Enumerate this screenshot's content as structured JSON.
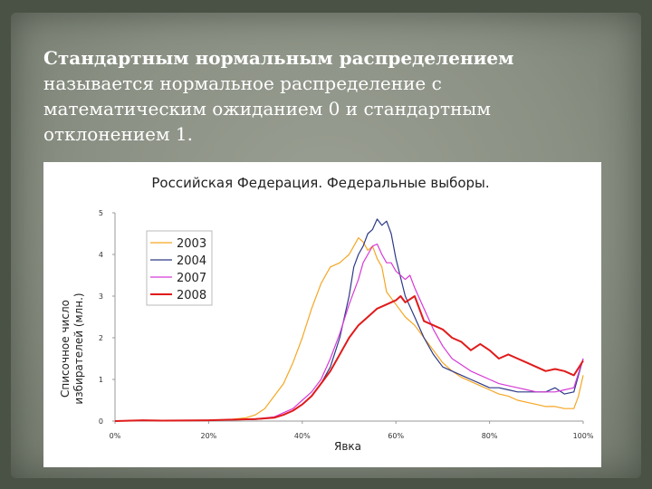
{
  "slide": {
    "definition_lead": "Стандартным нормальным распределением",
    "definition_rest": "называется нормальное распределение с математическим ожиданием 0 и стандартным отклонением 1."
  },
  "chart_data": {
    "type": "line",
    "title": "Российская Федерация. Федеральные выборы.",
    "xlabel": "Явка",
    "ylabel": "Списочное число избирателей (млн.)",
    "xlim": [
      0,
      100
    ],
    "ylim": [
      0,
      5
    ],
    "xticks": [
      "0%",
      "20%",
      "40%",
      "60%",
      "80%",
      "100%"
    ],
    "yticks": [
      "0",
      "1",
      "2",
      "3",
      "4",
      "5"
    ],
    "legend_position": "top-left",
    "series": [
      {
        "name": "2003",
        "color": "#f5a623",
        "x": [
          0,
          6,
          8,
          10,
          14,
          20,
          24,
          28,
          30,
          32,
          34,
          36,
          38,
          40,
          42,
          44,
          45,
          46,
          48,
          50,
          51,
          52,
          53,
          54,
          55,
          56,
          57,
          58,
          60,
          62,
          64,
          66,
          68,
          70,
          72,
          74,
          76,
          78,
          80,
          82,
          84,
          86,
          88,
          90,
          92,
          94,
          96,
          98,
          99,
          100
        ],
        "y": [
          0,
          0.02,
          0.01,
          0.01,
          0.02,
          0.02,
          0.03,
          0.08,
          0.15,
          0.3,
          0.6,
          0.9,
          1.4,
          2.0,
          2.7,
          3.3,
          3.5,
          3.7,
          3.8,
          4.0,
          4.2,
          4.4,
          4.3,
          4.1,
          4.2,
          3.9,
          3.7,
          3.1,
          2.8,
          2.5,
          2.3,
          2.0,
          1.7,
          1.4,
          1.2,
          1.05,
          0.95,
          0.85,
          0.75,
          0.65,
          0.6,
          0.5,
          0.45,
          0.4,
          0.35,
          0.35,
          0.3,
          0.3,
          0.6,
          1.1
        ]
      },
      {
        "name": "2004",
        "color": "#2e3a87",
        "x": [
          0,
          6,
          10,
          20,
          30,
          34,
          36,
          38,
          40,
          42,
          44,
          46,
          48,
          50,
          51,
          52,
          53,
          54,
          55,
          56,
          57,
          58,
          59,
          60,
          62,
          64,
          66,
          68,
          70,
          72,
          74,
          76,
          78,
          80,
          82,
          84,
          86,
          88,
          90,
          92,
          94,
          96,
          98,
          100
        ],
        "y": [
          0,
          0.02,
          0.01,
          0.02,
          0.04,
          0.08,
          0.15,
          0.25,
          0.4,
          0.6,
          0.9,
          1.3,
          2.0,
          3.0,
          3.7,
          4.0,
          4.2,
          4.5,
          4.6,
          4.85,
          4.7,
          4.8,
          4.5,
          3.9,
          3.0,
          2.5,
          2.0,
          1.6,
          1.3,
          1.2,
          1.1,
          1.0,
          0.9,
          0.8,
          0.8,
          0.75,
          0.7,
          0.7,
          0.7,
          0.7,
          0.8,
          0.65,
          0.7,
          1.5
        ]
      },
      {
        "name": "2007",
        "color": "#d63ad6",
        "x": [
          0,
          6,
          10,
          20,
          30,
          34,
          36,
          38,
          40,
          42,
          44,
          46,
          48,
          50,
          52,
          53,
          54,
          55,
          56,
          57,
          58,
          59,
          60,
          62,
          63,
          64,
          66,
          68,
          70,
          72,
          74,
          76,
          78,
          80,
          82,
          84,
          86,
          88,
          90,
          92,
          94,
          96,
          98,
          100
        ],
        "y": [
          0,
          0.02,
          0.01,
          0.02,
          0.05,
          0.1,
          0.2,
          0.3,
          0.5,
          0.7,
          1.0,
          1.5,
          2.1,
          2.8,
          3.4,
          3.8,
          4.0,
          4.2,
          4.25,
          4.0,
          3.8,
          3.8,
          3.6,
          3.4,
          3.5,
          3.2,
          2.7,
          2.2,
          1.8,
          1.5,
          1.35,
          1.2,
          1.1,
          1.0,
          0.9,
          0.85,
          0.8,
          0.75,
          0.7,
          0.7,
          0.7,
          0.75,
          0.8,
          1.5
        ]
      },
      {
        "name": "2008",
        "color": "#e01b1b",
        "x": [
          0,
          6,
          10,
          20,
          30,
          34,
          36,
          38,
          40,
          42,
          44,
          46,
          48,
          50,
          52,
          54,
          56,
          58,
          60,
          61,
          62,
          64,
          66,
          68,
          70,
          72,
          74,
          76,
          78,
          80,
          82,
          84,
          86,
          88,
          90,
          92,
          94,
          96,
          98,
          100
        ],
        "y": [
          0,
          0.02,
          0.01,
          0.02,
          0.05,
          0.08,
          0.15,
          0.25,
          0.4,
          0.6,
          0.9,
          1.2,
          1.6,
          2.0,
          2.3,
          2.5,
          2.7,
          2.8,
          2.9,
          3.0,
          2.85,
          3.0,
          2.4,
          2.3,
          2.2,
          2.0,
          1.9,
          1.7,
          1.85,
          1.7,
          1.5,
          1.6,
          1.5,
          1.4,
          1.3,
          1.2,
          1.25,
          1.2,
          1.1,
          1.45
        ]
      }
    ]
  }
}
